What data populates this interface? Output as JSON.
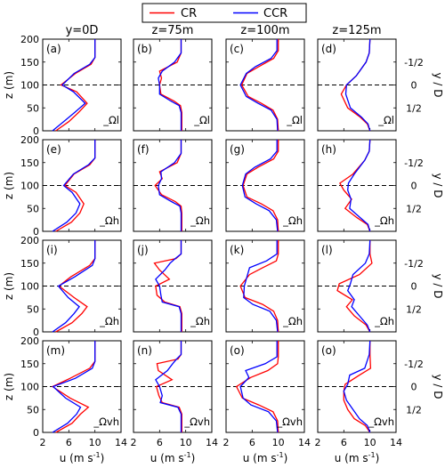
{
  "legend": {
    "items": [
      {
        "label": "CR",
        "color": "#ff0000"
      },
      {
        "label": "CCR",
        "color": "#0000ff"
      }
    ],
    "placement": "top-center"
  },
  "column_titles": [
    "y=0D",
    "z=75m",
    "z=100m",
    "z=125m"
  ],
  "row_tags": [
    "_Ωl",
    "_Ωh",
    "_Ωh",
    "_Ωvh"
  ],
  "panel_letters": [
    "(a)",
    "(b)",
    "(c)",
    "(d)",
    "(e)",
    "(f)",
    "(g)",
    "(h)",
    "(i)",
    "(j)",
    "(k)",
    "(l)",
    "(m)",
    "(n)",
    "(o)",
    "(o)"
  ],
  "axes": {
    "ylabel": "z (m)",
    "ylabel_right": "y / D",
    "xlabel": "u (m s",
    "xlabel_sup": "-1",
    "xlabel_close": ")",
    "xticks": [
      2,
      6,
      10,
      14
    ],
    "yticks": [
      0,
      50,
      100,
      150,
      200
    ],
    "right_ticks": [
      "-1/2",
      "0",
      "1/2"
    ],
    "xlim": [
      2,
      14
    ],
    "ylim": [
      0,
      200
    ],
    "hub_height": 100,
    "grid": false
  },
  "chart_data": {
    "type": "line",
    "x_label": "u (m s-1)",
    "y_label": "z (m)",
    "grid": false,
    "colors": {
      "CR": "#ff0000",
      "CCR": "#0000ff"
    },
    "xlim": [
      2,
      14
    ],
    "ylim": [
      0,
      200
    ],
    "panels": [
      {
        "id": "a",
        "series": [
          {
            "name": "CR",
            "x": [
              4.0,
              6.0,
              7.5,
              8.8,
              7.2,
              4.8,
              7.0,
              9.4,
              10.0,
              10.0
            ],
            "y": [
              0,
              20,
              40,
              60,
              85,
              100,
              125,
              145,
              160,
              200
            ]
          },
          {
            "name": "CCR",
            "x": [
              3.5,
              5.2,
              6.9,
              8.5,
              6.7,
              5.0,
              6.8,
              9.2,
              10.0,
              10.0
            ],
            "y": [
              0,
              20,
              40,
              60,
              85,
              100,
              125,
              145,
              160,
              200
            ]
          }
        ]
      },
      {
        "id": "b",
        "series": [
          {
            "name": "CR",
            "x": [
              9.4,
              9.4,
              9.2,
              8.2,
              6.2,
              6.0,
              6.3,
              6.0,
              8.7,
              9.3,
              9.3
            ],
            "y": [
              0,
              40,
              55,
              65,
              80,
              100,
              115,
              130,
              150,
              170,
              200
            ]
          },
          {
            "name": "CCR",
            "x": [
              9.3,
              9.3,
              9.0,
              7.7,
              6.0,
              6.0,
              5.8,
              6.4,
              8.3,
              9.3,
              9.3
            ],
            "y": [
              0,
              40,
              55,
              65,
              80,
              100,
              115,
              130,
              150,
              170,
              200
            ]
          }
        ]
      },
      {
        "id": "c",
        "series": [
          {
            "name": "CR",
            "x": [
              10.0,
              9.9,
              9.2,
              7.4,
              5.4,
              4.4,
              5.2,
              7.0,
              9.3,
              10.0,
              10.0
            ],
            "y": [
              0,
              25,
              45,
              60,
              75,
              100,
              125,
              140,
              158,
              175,
              200
            ]
          },
          {
            "name": "CCR",
            "x": [
              9.9,
              9.8,
              8.9,
              6.9,
              5.1,
              4.2,
              5.1,
              6.5,
              8.9,
              9.8,
              9.8
            ],
            "y": [
              0,
              25,
              45,
              60,
              75,
              100,
              125,
              140,
              158,
              175,
              200
            ]
          }
        ]
      },
      {
        "id": "d",
        "series": [
          {
            "name": "CR",
            "x": [
              10.0,
              9.6,
              8.5,
              6.6,
              5.6,
              6.4,
              7.9,
              9.4,
              9.9,
              10.0
            ],
            "y": [
              0,
              15,
              30,
              50,
              80,
              100,
              120,
              150,
              170,
              200
            ]
          },
          {
            "name": "CCR",
            "x": [
              10.0,
              9.7,
              8.7,
              7.0,
              6.3,
              6.4,
              7.9,
              9.4,
              9.9,
              10.0
            ],
            "y": [
              0,
              15,
              30,
              50,
              80,
              100,
              120,
              150,
              170,
              200
            ]
          }
        ]
      },
      {
        "id": "e",
        "series": [
          {
            "name": "CR",
            "x": [
              4.0,
              6.4,
              7.7,
              8.3,
              7.1,
              5.4,
              6.8,
              9.2,
              10.0,
              10.0
            ],
            "y": [
              0,
              20,
              40,
              60,
              85,
              100,
              125,
              145,
              160,
              200
            ]
          },
          {
            "name": "CCR",
            "x": [
              3.5,
              5.7,
              7.1,
              7.7,
              6.5,
              5.2,
              6.7,
              9.0,
              10.0,
              10.0
            ],
            "y": [
              0,
              20,
              40,
              60,
              85,
              100,
              125,
              145,
              160,
              200
            ]
          }
        ]
      },
      {
        "id": "f",
        "series": [
          {
            "name": "CR",
            "x": [
              9.4,
              9.4,
              9.3,
              8.4,
              6.3,
              5.3,
              6.4,
              6.0,
              8.7,
              9.3,
              9.3
            ],
            "y": [
              0,
              40,
              55,
              65,
              80,
              100,
              115,
              130,
              150,
              170,
              200
            ]
          },
          {
            "name": "CCR",
            "x": [
              9.3,
              9.3,
              9.1,
              7.8,
              6.0,
              5.8,
              6.3,
              6.2,
              8.3,
              9.3,
              9.3
            ],
            "y": [
              0,
              40,
              55,
              65,
              80,
              100,
              115,
              130,
              150,
              170,
              200
            ]
          }
        ]
      },
      {
        "id": "g",
        "series": [
          {
            "name": "CR",
            "x": [
              10.0,
              9.9,
              9.2,
              7.4,
              5.2,
              4.6,
              5.2,
              6.9,
              9.3,
              10.0,
              10.0
            ],
            "y": [
              0,
              25,
              45,
              60,
              75,
              100,
              125,
              140,
              158,
              175,
              200
            ]
          },
          {
            "name": "CCR",
            "x": [
              9.9,
              9.7,
              8.6,
              6.6,
              4.9,
              4.5,
              5.0,
              6.4,
              8.8,
              9.8,
              9.8
            ],
            "y": [
              0,
              25,
              45,
              60,
              75,
              100,
              125,
              140,
              158,
              175,
              200
            ]
          }
        ]
      },
      {
        "id": "h",
        "series": [
          {
            "name": "CR",
            "x": [
              10.0,
              9.6,
              8.0,
              6.2,
              7.2,
              6.0,
              5.4,
              7.4,
              9.2,
              9.9,
              10.0
            ],
            "y": [
              0,
              15,
              30,
              50,
              70,
              90,
              105,
              125,
              155,
              175,
              200
            ]
          },
          {
            "name": "CCR",
            "x": [
              10.0,
              9.7,
              8.5,
              6.9,
              7.1,
              6.6,
              6.7,
              7.6,
              9.2,
              9.9,
              10.0
            ],
            "y": [
              0,
              15,
              30,
              50,
              70,
              90,
              105,
              125,
              155,
              175,
              200
            ]
          }
        ]
      },
      {
        "id": "i",
        "series": [
          {
            "name": "CR",
            "x": [
              4.0,
              6.5,
              8.0,
              8.8,
              6.8,
              4.5,
              6.3,
              9.2,
              10.0,
              10.0
            ],
            "y": [
              0,
              20,
              40,
              55,
              75,
              100,
              120,
              145,
              160,
              200
            ]
          },
          {
            "name": "CCR",
            "x": [
              3.5,
              5.5,
              6.8,
              7.6,
              5.9,
              4.4,
              6.9,
              9.6,
              10.0,
              10.0
            ],
            "y": [
              0,
              20,
              40,
              55,
              75,
              100,
              120,
              145,
              160,
              200
            ]
          }
        ]
      },
      {
        "id": "j",
        "series": [
          {
            "name": "CR",
            "x": [
              9.4,
              9.4,
              9.1,
              6.8,
              5.6,
              5.4,
              7.5,
              6.0,
              5.2,
              8.5,
              9.3,
              9.3
            ],
            "y": [
              0,
              40,
              55,
              65,
              80,
              100,
              115,
              135,
              150,
              160,
              170,
              200
            ]
          },
          {
            "name": "CCR",
            "x": [
              9.3,
              9.3,
              9.0,
              6.4,
              6.2,
              6.0,
              5.4,
              6.8,
              7.6,
              8.4,
              9.3,
              9.3
            ],
            "y": [
              0,
              40,
              55,
              65,
              80,
              100,
              115,
              135,
              150,
              160,
              170,
              200
            ]
          }
        ]
      },
      {
        "id": "k",
        "series": [
          {
            "name": "CR",
            "x": [
              10.0,
              9.9,
              9.3,
              7.6,
              4.9,
              4.2,
              5.6,
              7.6,
              9.7,
              10.0,
              10.0
            ],
            "y": [
              0,
              25,
              45,
              60,
              75,
              100,
              125,
              140,
              155,
              170,
              200
            ]
          },
          {
            "name": "CCR",
            "x": [
              9.9,
              9.7,
              8.7,
              6.1,
              4.7,
              4.8,
              5.3,
              5.6,
              8.2,
              9.8,
              9.8
            ],
            "y": [
              0,
              25,
              45,
              60,
              75,
              100,
              125,
              140,
              155,
              170,
              200
            ]
          }
        ]
      },
      {
        "id": "l",
        "series": [
          {
            "name": "CR",
            "x": [
              10.0,
              9.4,
              7.6,
              6.4,
              7.3,
              5.0,
              5.3,
              8.4,
              10.3,
              10.0,
              10.0
            ],
            "y": [
              0,
              15,
              35,
              55,
              70,
              90,
              105,
              125,
              150,
              170,
              200
            ]
          },
          {
            "name": "CCR",
            "x": [
              10.0,
              9.6,
              8.4,
              7.2,
              7.6,
              6.6,
              7.0,
              7.4,
              9.3,
              9.9,
              10.0
            ],
            "y": [
              0,
              15,
              35,
              55,
              70,
              90,
              105,
              125,
              150,
              170,
              200
            ]
          }
        ]
      },
      {
        "id": "m",
        "series": [
          {
            "name": "CR",
            "x": [
              4.0,
              6.5,
              7.8,
              9.0,
              6.2,
              3.5,
              6.2,
              9.2,
              10.0,
              10.0
            ],
            "y": [
              0,
              20,
              40,
              55,
              75,
              100,
              118,
              140,
              155,
              200
            ]
          },
          {
            "name": "CCR",
            "x": [
              3.5,
              5.8,
              7.2,
              7.8,
              5.5,
              3.6,
              7.0,
              9.6,
              10.0,
              10.0
            ],
            "y": [
              0,
              20,
              40,
              55,
              75,
              100,
              118,
              140,
              155,
              200
            ]
          }
        ]
      },
      {
        "id": "n",
        "series": [
          {
            "name": "CR",
            "x": [
              9.4,
              9.4,
              9.0,
              6.4,
              5.9,
              5.5,
              7.9,
              5.8,
              5.6,
              8.8,
              9.3,
              9.3
            ],
            "y": [
              0,
              40,
              55,
              65,
              80,
              100,
              115,
              135,
              150,
              160,
              170,
              200
            ]
          },
          {
            "name": "CCR",
            "x": [
              9.3,
              9.3,
              8.8,
              6.1,
              6.4,
              6.0,
              5.4,
              7.2,
              8.0,
              8.6,
              9.3,
              9.3
            ],
            "y": [
              0,
              40,
              55,
              65,
              80,
              100,
              115,
              135,
              150,
              160,
              170,
              200
            ]
          }
        ]
      },
      {
        "id": "o",
        "series": [
          {
            "name": "CR",
            "x": [
              10.0,
              9.9,
              9.2,
              7.0,
              4.5,
              3.6,
              5.8,
              8.4,
              9.9,
              10.0,
              10.0
            ],
            "y": [
              0,
              25,
              45,
              60,
              75,
              100,
              120,
              135,
              150,
              165,
              200
            ]
          },
          {
            "name": "CCR",
            "x": [
              9.9,
              9.7,
              8.5,
              5.8,
              4.6,
              4.2,
              5.5,
              5.0,
              8.0,
              9.8,
              9.8
            ],
            "y": [
              0,
              25,
              45,
              60,
              75,
              100,
              120,
              135,
              150,
              165,
              200
            ]
          }
        ]
      },
      {
        "id": "o2",
        "series": [
          {
            "name": "CR",
            "x": [
              10.0,
              9.3,
              7.6,
              6.6,
              6.0,
              6.0,
              6.2,
              8.4,
              10.1,
              10.0,
              10.0
            ],
            "y": [
              0,
              15,
              30,
              50,
              70,
              90,
              105,
              125,
              140,
              170,
              200
            ]
          },
          {
            "name": "CCR",
            "x": [
              10.0,
              9.6,
              8.4,
              7.4,
              6.4,
              6.0,
              6.6,
              6.9,
              9.2,
              9.9,
              10.0
            ],
            "y": [
              0,
              15,
              30,
              50,
              70,
              90,
              105,
              125,
              140,
              170,
              200
            ]
          }
        ]
      }
    ]
  }
}
